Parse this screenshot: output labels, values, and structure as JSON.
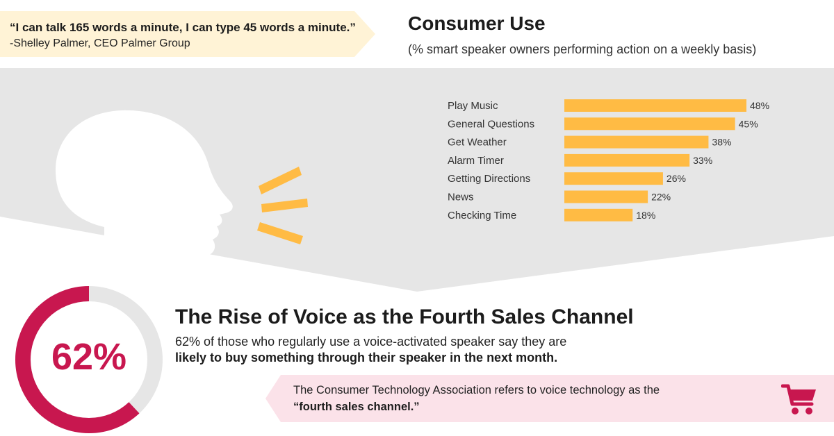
{
  "quote": {
    "text": "“I can talk 165 words a minute, I can type 45 words a minute.”",
    "attribution": "-Shelley Palmer, CEO Palmer Group"
  },
  "colors": {
    "accent": "#FFBB44",
    "bar": "#FFBB44",
    "magenta": "#C8174F",
    "background_gray": "#E6E6E6",
    "quote_bg": "#FFF3D6",
    "cta_bg": "#FBE2E9",
    "ring_track": "#E6E6E6"
  },
  "chart_data": {
    "type": "bar",
    "orientation": "horizontal",
    "title": "Consumer Use",
    "subtitle": "(% smart speaker owners performing action on a weekly basis)",
    "categories": [
      "Play Music",
      "General Questions",
      "Get Weather",
      "Alarm Timer",
      "Getting Directions",
      "News",
      "Checking Time"
    ],
    "values": [
      48,
      45,
      38,
      33,
      26,
      22,
      18
    ],
    "value_labels": [
      "48%",
      "45%",
      "38%",
      "33%",
      "26%",
      "22%",
      "18%"
    ],
    "xlim": [
      0,
      48
    ],
    "grid": false,
    "legend": "none"
  },
  "stat": {
    "value": 62,
    "label": "62%",
    "title": "The Rise of Voice as the Fourth Sales Channel",
    "line1": "62% of those who regularly use a voice-activated speaker say they are",
    "line2": "likely to buy something through their speaker in the next month."
  },
  "callout": {
    "line1": "The Consumer Technology Association refers to voice technology as the",
    "line2": "“fourth sales channel.”",
    "icon": "shopping-cart-icon"
  }
}
